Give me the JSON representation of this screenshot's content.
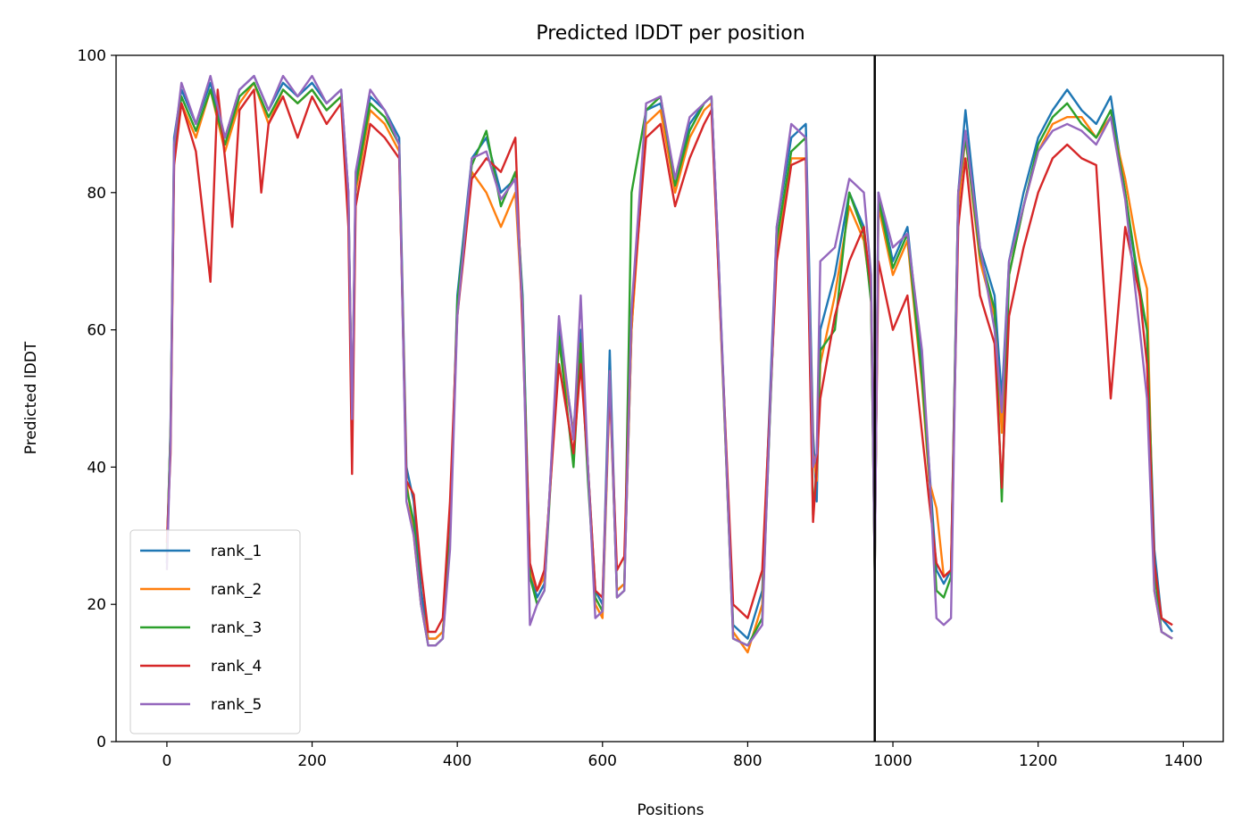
{
  "chart_data": {
    "type": "line",
    "title": "Predicted lDDT per position",
    "xlabel": "Positions",
    "ylabel": "Predicted lDDT",
    "xlim": [
      -70,
      1455
    ],
    "ylim": [
      0,
      100
    ],
    "xticks": [
      0,
      200,
      400,
      600,
      800,
      1000,
      1200,
      1400
    ],
    "yticks": [
      0,
      20,
      40,
      60,
      80,
      100
    ],
    "grid": false,
    "legend_position": "lower-left",
    "vertical_line_x": 975,
    "series": [
      {
        "name": "rank_1",
        "color": "#1f77b4",
        "x": [
          0,
          5,
          10,
          20,
          40,
          60,
          80,
          100,
          120,
          140,
          160,
          180,
          200,
          220,
          240,
          250,
          255,
          260,
          280,
          300,
          320,
          330,
          340,
          350,
          360,
          370,
          380,
          390,
          400,
          420,
          440,
          460,
          480,
          490,
          500,
          510,
          520,
          540,
          560,
          570,
          580,
          590,
          600,
          610,
          620,
          630,
          640,
          660,
          680,
          700,
          720,
          740,
          750,
          760,
          780,
          800,
          820,
          840,
          860,
          880,
          890,
          895,
          900,
          920,
          940,
          960,
          970,
          975,
          980,
          1000,
          1020,
          1040,
          1050,
          1060,
          1070,
          1080,
          1090,
          1100,
          1120,
          1140,
          1150,
          1160,
          1180,
          1200,
          1220,
          1240,
          1260,
          1280,
          1300,
          1320,
          1340,
          1350,
          1360,
          1370,
          1385
        ],
        "y": [
          26,
          46,
          88,
          95,
          90,
          96,
          88,
          95,
          97,
          92,
          96,
          94,
          96,
          93,
          95,
          80,
          45,
          82,
          94,
          92,
          88,
          40,
          35,
          22,
          15,
          15,
          16,
          30,
          65,
          85,
          88,
          80,
          82,
          65,
          25,
          21,
          23,
          60,
          45,
          60,
          40,
          22,
          20,
          57,
          22,
          23,
          60,
          92,
          93,
          82,
          90,
          93,
          94,
          70,
          17,
          15,
          22,
          75,
          88,
          90,
          45,
          35,
          60,
          68,
          80,
          75,
          65,
          25,
          80,
          70,
          75,
          55,
          40,
          25,
          23,
          25,
          80,
          92,
          72,
          65,
          50,
          70,
          80,
          88,
          92,
          95,
          92,
          90,
          94,
          80,
          65,
          60,
          28,
          18,
          16
        ]
      },
      {
        "name": "rank_2",
        "color": "#ff7f0e",
        "x": [
          0,
          5,
          10,
          20,
          40,
          60,
          80,
          100,
          120,
          140,
          160,
          180,
          200,
          220,
          240,
          250,
          255,
          260,
          280,
          300,
          320,
          330,
          340,
          350,
          360,
          370,
          380,
          390,
          400,
          420,
          440,
          460,
          480,
          490,
          500,
          510,
          520,
          540,
          560,
          570,
          580,
          590,
          600,
          610,
          620,
          630,
          640,
          660,
          680,
          700,
          720,
          740,
          750,
          760,
          780,
          800,
          820,
          840,
          860,
          880,
          890,
          895,
          900,
          920,
          940,
          960,
          970,
          975,
          980,
          1000,
          1020,
          1040,
          1050,
          1060,
          1070,
          1080,
          1090,
          1100,
          1120,
          1140,
          1150,
          1160,
          1180,
          1200,
          1220,
          1240,
          1260,
          1280,
          1300,
          1320,
          1340,
          1350,
          1360,
          1370,
          1385
        ],
        "y": [
          27,
          45,
          85,
          93,
          88,
          95,
          86,
          93,
          96,
          90,
          95,
          93,
          95,
          92,
          94,
          78,
          46,
          80,
          92,
          90,
          86,
          38,
          30,
          20,
          15,
          15,
          16,
          30,
          63,
          83,
          80,
          75,
          80,
          62,
          25,
          22,
          24,
          58,
          45,
          58,
          40,
          20,
          18,
          52,
          22,
          23,
          60,
          90,
          92,
          80,
          88,
          92,
          93,
          68,
          16,
          13,
          20,
          72,
          85,
          85,
          42,
          38,
          55,
          65,
          78,
          73,
          65,
          25,
          78,
          68,
          73,
          52,
          38,
          34,
          24,
          25,
          78,
          88,
          70,
          62,
          45,
          68,
          78,
          86,
          90,
          91,
          91,
          88,
          91,
          82,
          70,
          66,
          22,
          16,
          15
        ]
      },
      {
        "name": "rank_3",
        "color": "#2ca02c",
        "x": [
          0,
          5,
          10,
          20,
          40,
          60,
          80,
          100,
          120,
          140,
          160,
          180,
          200,
          220,
          240,
          250,
          255,
          260,
          280,
          300,
          320,
          330,
          340,
          350,
          360,
          370,
          380,
          390,
          400,
          420,
          440,
          460,
          480,
          490,
          500,
          510,
          520,
          540,
          560,
          570,
          580,
          590,
          600,
          610,
          620,
          630,
          640,
          660,
          680,
          700,
          720,
          740,
          750,
          760,
          780,
          800,
          820,
          840,
          860,
          880,
          890,
          895,
          900,
          920,
          940,
          960,
          970,
          975,
          980,
          1000,
          1020,
          1040,
          1050,
          1060,
          1070,
          1080,
          1090,
          1100,
          1120,
          1140,
          1150,
          1160,
          1180,
          1200,
          1220,
          1240,
          1260,
          1280,
          1300,
          1320,
          1340,
          1350,
          1360,
          1370,
          1385
        ],
        "y": [
          28,
          45,
          86,
          94,
          89,
          95,
          87,
          94,
          96,
          91,
          95,
          93,
          95,
          92,
          94,
          79,
          47,
          81,
          93,
          91,
          87,
          37,
          32,
          20,
          14,
          14,
          15,
          30,
          64,
          84,
          89,
          78,
          83,
          64,
          24,
          20,
          22,
          59,
          40,
          58,
          38,
          21,
          19,
          54,
          21,
          22,
          80,
          92,
          94,
          81,
          89,
          93,
          94,
          69,
          15,
          14,
          18,
          73,
          86,
          88,
          33,
          40,
          57,
          60,
          80,
          74,
          64,
          25,
          79,
          69,
          74,
          53,
          39,
          22,
          21,
          24,
          80,
          88,
          71,
          63,
          35,
          68,
          78,
          87,
          91,
          93,
          90,
          88,
          92,
          80,
          66,
          60,
          25,
          16,
          15
        ]
      },
      {
        "name": "rank_4",
        "color": "#d62728",
        "x": [
          0,
          5,
          10,
          20,
          40,
          60,
          70,
          80,
          90,
          100,
          120,
          130,
          140,
          160,
          180,
          200,
          220,
          240,
          250,
          255,
          260,
          280,
          300,
          320,
          330,
          340,
          350,
          360,
          370,
          380,
          390,
          400,
          420,
          440,
          460,
          480,
          490,
          500,
          510,
          520,
          540,
          560,
          570,
          580,
          590,
          600,
          610,
          620,
          630,
          640,
          660,
          680,
          700,
          720,
          740,
          750,
          760,
          780,
          800,
          820,
          840,
          860,
          880,
          890,
          895,
          900,
          920,
          940,
          960,
          970,
          975,
          980,
          1000,
          1020,
          1040,
          1050,
          1060,
          1070,
          1080,
          1090,
          1100,
          1120,
          1140,
          1150,
          1160,
          1180,
          1200,
          1220,
          1240,
          1260,
          1280,
          1300,
          1320,
          1340,
          1350,
          1360,
          1370,
          1385
        ],
        "y": [
          29,
          42,
          84,
          93,
          86,
          67,
          95,
          85,
          75,
          92,
          95,
          80,
          90,
          94,
          88,
          94,
          90,
          93,
          75,
          39,
          78,
          90,
          88,
          85,
          38,
          36,
          25,
          16,
          16,
          18,
          35,
          62,
          82,
          85,
          83,
          88,
          60,
          26,
          22,
          25,
          55,
          42,
          55,
          40,
          22,
          21,
          52,
          25,
          27,
          62,
          88,
          90,
          78,
          85,
          90,
          92,
          68,
          20,
          18,
          25,
          70,
          84,
          85,
          32,
          40,
          50,
          62,
          70,
          75,
          66,
          30,
          70,
          60,
          65,
          45,
          35,
          26,
          24,
          25,
          75,
          85,
          65,
          58,
          37,
          62,
          72,
          80,
          85,
          87,
          85,
          84,
          50,
          75,
          65,
          55,
          26,
          18,
          17
        ]
      },
      {
        "name": "rank_5",
        "color": "#9467bd",
        "x": [
          0,
          5,
          10,
          20,
          40,
          60,
          80,
          100,
          120,
          140,
          160,
          180,
          200,
          220,
          240,
          250,
          255,
          260,
          280,
          300,
          320,
          330,
          340,
          350,
          360,
          370,
          380,
          390,
          400,
          420,
          440,
          460,
          480,
          490,
          500,
          510,
          520,
          540,
          560,
          570,
          580,
          590,
          600,
          610,
          620,
          630,
          640,
          660,
          680,
          700,
          720,
          740,
          750,
          760,
          780,
          800,
          820,
          840,
          860,
          880,
          890,
          895,
          900,
          920,
          940,
          960,
          970,
          975,
          980,
          1000,
          1020,
          1040,
          1050,
          1060,
          1070,
          1080,
          1090,
          1100,
          1120,
          1140,
          1150,
          1160,
          1180,
          1200,
          1220,
          1240,
          1260,
          1280,
          1300,
          1320,
          1340,
          1350,
          1360,
          1370,
          1385
        ],
        "y": [
          25,
          44,
          87,
          96,
          90,
          97,
          88,
          95,
          97,
          92,
          97,
          94,
          97,
          93,
          95,
          80,
          47,
          83,
          95,
          92,
          87,
          35,
          30,
          20,
          14,
          14,
          15,
          28,
          62,
          85,
          86,
          79,
          82,
          63,
          17,
          20,
          22,
          62,
          44,
          65,
          40,
          18,
          19,
          54,
          21,
          22,
          63,
          93,
          94,
          82,
          91,
          93,
          94,
          70,
          15,
          14,
          17,
          75,
          90,
          88,
          40,
          42,
          70,
          72,
          82,
          80,
          68,
          25,
          80,
          72,
          74,
          57,
          40,
          18,
          17,
          18,
          80,
          89,
          72,
          60,
          48,
          70,
          78,
          86,
          89,
          90,
          89,
          87,
          91,
          79,
          60,
          50,
          22,
          16,
          15
        ]
      }
    ]
  }
}
